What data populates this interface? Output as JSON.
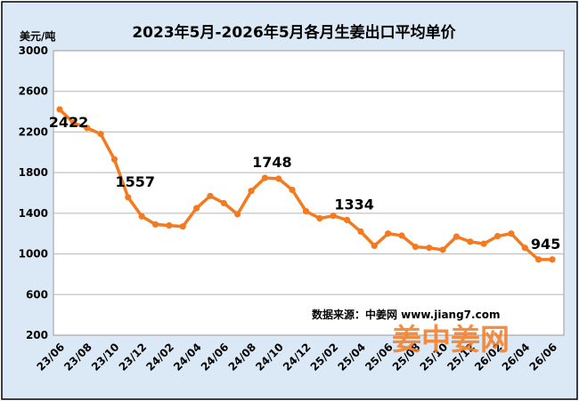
{
  "chart_data": {
    "type": "line",
    "title": "2023年5月-2026年5月各月生姜出口平均单价",
    "ylabel": "美元/吨",
    "ylim": [
      200,
      3000
    ],
    "yticks": [
      200,
      600,
      1000,
      1400,
      1800,
      2200,
      2600,
      3000
    ],
    "xtick_labels": [
      "23/06",
      "23/08",
      "23/10",
      "23/12",
      "24/02",
      "24/04",
      "24/06",
      "24/08",
      "24/10",
      "24/12",
      "25/02",
      "25/04",
      "25/06",
      "25/08",
      "25/10",
      "25/12",
      "26/02",
      "26/04",
      "26/06"
    ],
    "grid": true,
    "series": [
      {
        "values": [
          2422,
          2290,
          2240,
          2180,
          1930,
          1557,
          1370,
          1290,
          1280,
          1270,
          1450,
          1570,
          1500,
          1390,
          1620,
          1748,
          1740,
          1630,
          1420,
          1350,
          1375,
          1334,
          1220,
          1080,
          1200,
          1180,
          1070,
          1060,
          1040,
          1170,
          1120,
          1100,
          1175,
          1200,
          1060,
          945,
          945
        ]
      }
    ],
    "data_labels": [
      {
        "index": 0,
        "text": "2422"
      },
      {
        "index": 5,
        "text": "1557"
      },
      {
        "index": 15,
        "text": "1748"
      },
      {
        "index": 21,
        "text": "1334"
      },
      {
        "index": 35,
        "text": "945"
      }
    ],
    "line_color": "#f47a20",
    "plot_bg": "#ffffff",
    "page_bg": "#dbe9f6",
    "source": "数据来源：中姜网 www.jiang7.com",
    "watermark": "姜中姜网"
  }
}
